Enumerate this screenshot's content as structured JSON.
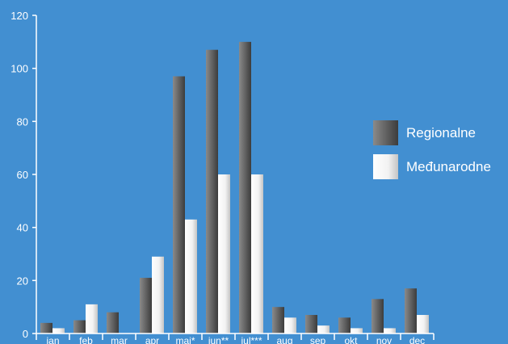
{
  "colors": {
    "background": "#428fd1",
    "axis": "#ffffff",
    "series_regional_light": "#8a8a8a",
    "series_regional_dark": "#3c3c3c",
    "series_international_light": "#ffffff",
    "series_international_dark": "#cfcfcf"
  },
  "chart_data": {
    "type": "bar",
    "title": "",
    "xlabel": "",
    "ylabel": "",
    "ylim": [
      0,
      120
    ],
    "yticks": [
      0,
      20,
      40,
      60,
      80,
      100,
      120
    ],
    "grid": false,
    "legend_position": "right",
    "categories": [
      "jan",
      "feb",
      "mar",
      "apr",
      "maj*",
      "jun**",
      "jul***",
      "aug",
      "sep",
      "okt",
      "nov",
      "dec"
    ],
    "series": [
      {
        "name": "Regionalne",
        "values": [
          4,
          5,
          8,
          21,
          97,
          107,
          110,
          10,
          7,
          6,
          13,
          17
        ]
      },
      {
        "name": "Međunarodne",
        "values": [
          2,
          11,
          0,
          29,
          43,
          60,
          60,
          6,
          3,
          2,
          2,
          7
        ]
      }
    ]
  }
}
